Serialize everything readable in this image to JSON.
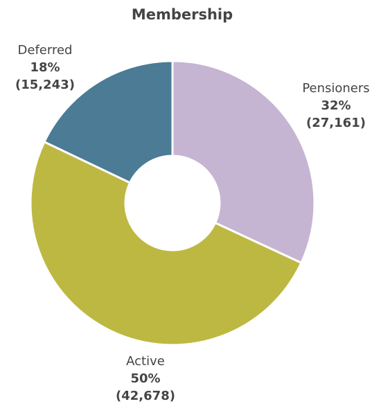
{
  "chart_data": {
    "type": "pie",
    "title": "Membership",
    "categories": [
      "Pensioners",
      "Active",
      "Deferred"
    ],
    "values": [
      27161,
      42678,
      15243
    ],
    "value_labels": [
      "(27,161)",
      "(42,678)",
      "(15,243)"
    ],
    "percents": [
      32,
      50,
      18
    ],
    "percent_labels": [
      "32%",
      "50%",
      "18%"
    ],
    "colors": [
      "#c5b4d2",
      "#bdb842",
      "#4b7b95"
    ],
    "donut": true
  }
}
